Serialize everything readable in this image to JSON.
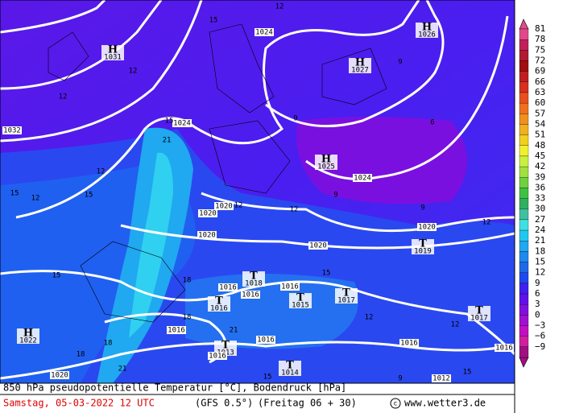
{
  "map": {
    "pressure_centers": [
      {
        "symbol": "H",
        "value": "1031"
      },
      {
        "symbol": "H",
        "value": "1026"
      },
      {
        "symbol": "H",
        "value": "1027"
      },
      {
        "symbol": "H",
        "value": "1025"
      },
      {
        "symbol": "T",
        "value": "1019"
      },
      {
        "symbol": "T",
        "value": "1018"
      },
      {
        "symbol": "T",
        "value": "1016"
      },
      {
        "symbol": "T",
        "value": "1015"
      },
      {
        "symbol": "T",
        "value": "1017"
      },
      {
        "symbol": "T",
        "value": "1017"
      },
      {
        "symbol": "H",
        "value": "1022"
      },
      {
        "symbol": "T",
        "value": "1013"
      },
      {
        "symbol": "T",
        "value": "1014"
      }
    ],
    "isobar_labels": [
      "1024",
      "1032",
      "1024",
      "1024",
      "1020",
      "1020",
      "1020",
      "1020",
      "1020",
      "1016",
      "1016",
      "1016",
      "1016",
      "1016",
      "1016",
      "1016",
      "1016",
      "1020",
      "1012"
    ],
    "temperature_labels": [
      "12",
      "15",
      "9",
      "12",
      "12",
      "9",
      "6",
      "15",
      "21",
      "12",
      "15",
      "12",
      "15",
      "9",
      "12",
      "12",
      "9",
      "12",
      "15",
      "15",
      "18",
      "12",
      "18",
      "21",
      "12",
      "18",
      "18",
      "21",
      "15",
      "9",
      "15"
    ]
  },
  "colorbar": {
    "labels": [
      "81",
      "78",
      "75",
      "72",
      "69",
      "66",
      "63",
      "60",
      "57",
      "54",
      "51",
      "48",
      "45",
      "42",
      "39",
      "36",
      "33",
      "30",
      "27",
      "24",
      "21",
      "18",
      "15",
      "12",
      "9",
      "6",
      "3",
      "0",
      "−3",
      "−6",
      "−9"
    ],
    "colors": [
      "#e04a8a",
      "#c0205a",
      "#b01a30",
      "#a01010",
      "#c02020",
      "#d83020",
      "#e85020",
      "#f07020",
      "#f09020",
      "#f0b020",
      "#f0d020",
      "#f0f030",
      "#c8f040",
      "#a0e040",
      "#70d040",
      "#40c040",
      "#30b060",
      "#40c0a0",
      "#40e0e0",
      "#20c8f0",
      "#20a8f0",
      "#2088f0",
      "#2068e8",
      "#2048f0",
      "#4020f0",
      "#6010e8",
      "#8010e0",
      "#a010d0",
      "#c010c0",
      "#d020a0",
      "#a01080"
    ]
  },
  "footer": {
    "line1": "850 hPa pseudopotentielle Temperatur [°C], Bodendruck [hPa]",
    "date": "Samstag, 05-03-2022  12 UTC",
    "model": "(GFS 0.5°)",
    "run": "(Freitag 06 + 30)",
    "site": "www.wetter3.de"
  }
}
